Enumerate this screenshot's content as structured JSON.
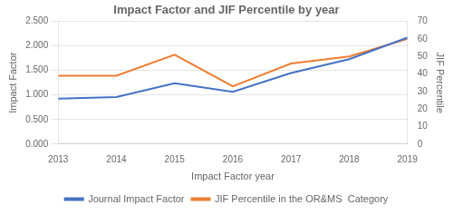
{
  "chart_data": {
    "type": "line",
    "title": "Impact Factor and JIF Percentile by year",
    "x_label": "Impact Factor year",
    "y_label": "Impact Factor",
    "y2_label": "JIF Percentile",
    "x": [
      2013,
      2014,
      2015,
      2016,
      2017,
      2018,
      2019
    ],
    "xlim": [
      2013,
      2019
    ],
    "xticks": [
      2013,
      2014,
      2015,
      2016,
      2017,
      2018,
      2019
    ],
    "series": [
      {
        "name": "Journal Impact Factor",
        "color": "#4472c4",
        "values": [
          0.927,
          0.96,
          1.241,
          1.063,
          1.448,
          1.73,
          2.168
        ]
      },
      {
        "name": "JIF Percentile in the OR&MS  Category",
        "color": "#ed7d31",
        "values": [
          39,
          39,
          51,
          33,
          46,
          50,
          60
        ],
        "axis": "y2"
      }
    ],
    "ylim": [
      0,
      2.5
    ],
    "yticks": [
      {
        "value": 0.0,
        "label": "0.000"
      },
      {
        "value": 0.5,
        "label": "0.500"
      },
      {
        "value": 1.0,
        "label": "1.000"
      },
      {
        "value": 1.5,
        "label": "1.500"
      },
      {
        "value": 2.0,
        "label": "2.000"
      },
      {
        "value": 2.5,
        "label": "2.500"
      }
    ],
    "y2lim": [
      0,
      70
    ],
    "y2ticks": [
      0,
      10,
      20,
      30,
      40,
      50,
      60,
      70
    ],
    "grid": true,
    "legend": "bottom"
  }
}
